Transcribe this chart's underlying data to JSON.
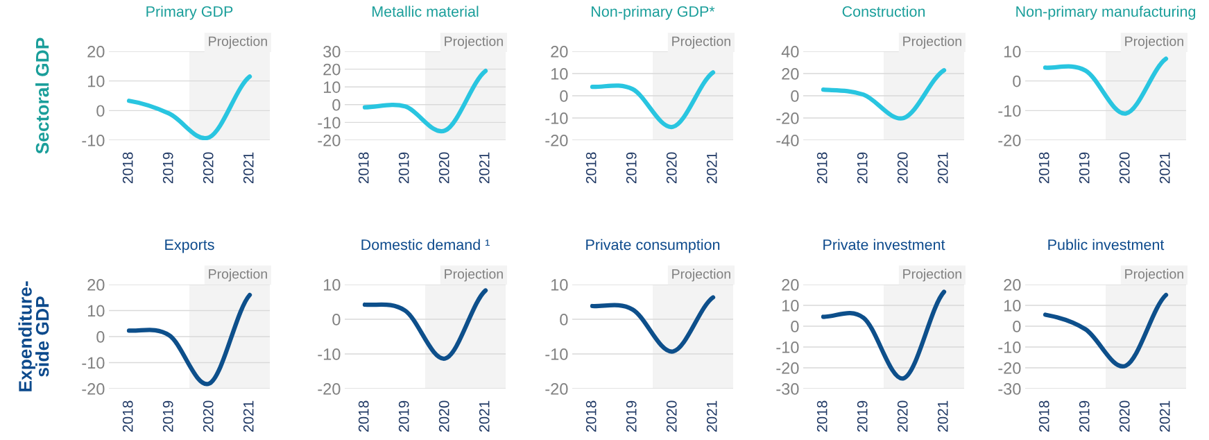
{
  "chart_data": [
    {
      "type": "line",
      "title": "Primary GDP",
      "ylabel": "Sectoral GDP",
      "categories": [
        "2018",
        "2019",
        "2020",
        "2021"
      ],
      "series": [
        {
          "color": "#29c5e0",
          "values": [
            3.3,
            -1.0,
            -9.0,
            11.5
          ]
        }
      ],
      "ylim": [
        -10,
        20
      ],
      "yticks": [
        -10,
        0,
        10,
        20
      ],
      "grid": "y",
      "bands": [
        {
          "axis": "x",
          "from": "2020",
          "to": "2021",
          "label": "Projection",
          "color": "#f3f3f3"
        }
      ]
    },
    {
      "type": "line",
      "title": "Metallic material",
      "categories": [
        "2018",
        "2019",
        "2020",
        "2021"
      ],
      "series": [
        {
          "color": "#29c5e0",
          "values": [
            -1.5,
            -1.0,
            -14.5,
            19
          ]
        }
      ],
      "ylim": [
        -20,
        30
      ],
      "yticks": [
        -20,
        -10,
        0,
        10,
        20,
        30
      ],
      "grid": "y",
      "bands": [
        {
          "axis": "x",
          "from": "2020",
          "to": "2021",
          "label": "Projection",
          "color": "#f3f3f3"
        }
      ]
    },
    {
      "type": "line",
      "title": "Non-primary GDP*",
      "categories": [
        "2018",
        "2019",
        "2020",
        "2021"
      ],
      "series": [
        {
          "color": "#29c5e0",
          "values": [
            4,
            3,
            -14,
            10.5
          ]
        }
      ],
      "ylim": [
        -20,
        20
      ],
      "yticks": [
        -20,
        -10,
        0,
        10,
        20
      ],
      "grid": "y",
      "bands": [
        {
          "axis": "x",
          "from": "2020",
          "to": "2021",
          "label": "Projection",
          "color": "#f3f3f3"
        }
      ]
    },
    {
      "type": "line",
      "title": "Construction",
      "categories": [
        "2018",
        "2019",
        "2020",
        "2021"
      ],
      "series": [
        {
          "color": "#29c5e0",
          "values": [
            5.5,
            1,
            -20,
            23
          ]
        }
      ],
      "ylim": [
        -40,
        40
      ],
      "yticks": [
        -40,
        -20,
        0,
        20,
        40
      ],
      "grid": "y",
      "bands": [
        {
          "axis": "x",
          "from": "2020",
          "to": "2021",
          "label": "Projection",
          "color": "#f3f3f3"
        }
      ]
    },
    {
      "type": "line",
      "title": "Non-primary manufacturing",
      "categories": [
        "2018",
        "2019",
        "2020",
        "2021"
      ],
      "series": [
        {
          "color": "#29c5e0",
          "values": [
            4.5,
            3.5,
            -11,
            7.5
          ]
        }
      ],
      "ylim": [
        -20,
        10
      ],
      "yticks": [
        -20,
        -10,
        0,
        10
      ],
      "grid": "y",
      "bands": [
        {
          "axis": "x",
          "from": "2020",
          "to": "2021",
          "label": "Projection",
          "color": "#f3f3f3"
        }
      ]
    },
    {
      "type": "line",
      "title": "Exports",
      "ylabel": "Expenditure-\nside GDP",
      "categories": [
        "2018",
        "2019",
        "2020",
        "2021"
      ],
      "series": [
        {
          "color": "#0d4f8b",
          "values": [
            2.3,
            0.5,
            -18,
            16
          ]
        }
      ],
      "ylim": [
        -20,
        20
      ],
      "yticks": [
        -20,
        -10,
        0,
        10,
        20
      ],
      "grid": "y",
      "bands": [
        {
          "axis": "x",
          "from": "2020",
          "to": "2021",
          "label": "Projection",
          "color": "#f3f3f3"
        }
      ]
    },
    {
      "type": "line",
      "title": "Domestic demand ¹",
      "categories": [
        "2018",
        "2019",
        "2020",
        "2021"
      ],
      "series": [
        {
          "color": "#0d4f8b",
          "values": [
            4.2,
            2.5,
            -11.3,
            8.3
          ]
        }
      ],
      "ylim": [
        -20,
        10
      ],
      "yticks": [
        -20,
        -10,
        0,
        10
      ],
      "grid": "y",
      "bands": [
        {
          "axis": "x",
          "from": "2020",
          "to": "2021",
          "label": "Projection",
          "color": "#f3f3f3"
        }
      ]
    },
    {
      "type": "line",
      "title": "Private consumption",
      "categories": [
        "2018",
        "2019",
        "2020",
        "2021"
      ],
      "series": [
        {
          "color": "#0d4f8b",
          "values": [
            3.8,
            2.8,
            -9.3,
            6.3
          ]
        }
      ],
      "ylim": [
        -20,
        10
      ],
      "yticks": [
        -20,
        -10,
        0,
        10
      ],
      "grid": "y",
      "bands": [
        {
          "axis": "x",
          "from": "2020",
          "to": "2021",
          "label": "Projection",
          "color": "#f3f3f3"
        }
      ]
    },
    {
      "type": "line",
      "title": "Private investment",
      "categories": [
        "2018",
        "2019",
        "2020",
        "2021"
      ],
      "series": [
        {
          "color": "#0d4f8b",
          "values": [
            4.5,
            4,
            -25,
            16.5
          ]
        }
      ],
      "ylim": [
        -30,
        20
      ],
      "yticks": [
        -30,
        -20,
        -10,
        0,
        10,
        20
      ],
      "grid": "y",
      "bands": [
        {
          "axis": "x",
          "from": "2020",
          "to": "2021",
          "label": "Projection",
          "color": "#f3f3f3"
        }
      ]
    },
    {
      "type": "line",
      "title": "Public investment",
      "categories": [
        "2018",
        "2019",
        "2020",
        "2021"
      ],
      "series": [
        {
          "color": "#0d4f8b",
          "values": [
            5.5,
            -1.5,
            -19,
            15
          ]
        }
      ],
      "ylim": [
        -30,
        20
      ],
      "yticks": [
        -30,
        -20,
        -10,
        0,
        10,
        20
      ],
      "grid": "y",
      "bands": [
        {
          "axis": "x",
          "from": "2020",
          "to": "2021",
          "label": "Projection",
          "color": "#f3f3f3"
        }
      ]
    }
  ]
}
